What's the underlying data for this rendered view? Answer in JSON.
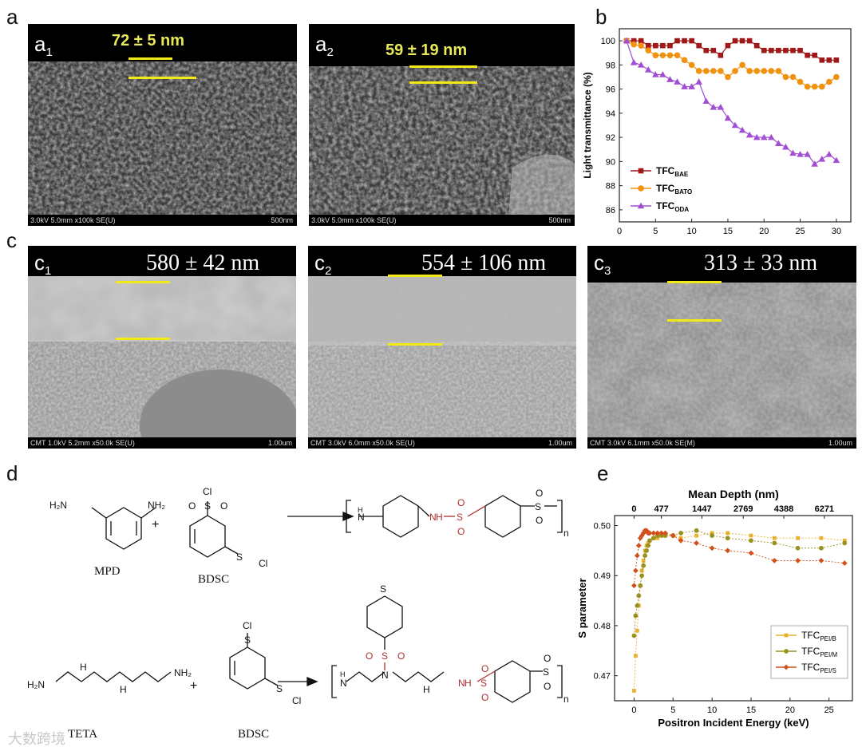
{
  "panels": {
    "a": {
      "label": "a",
      "a1": {
        "sublabel": "a",
        "sub": "1",
        "measure": "72 ± 5 nm",
        "info": "3.0kV 5.0mm x100k SE(U)",
        "scale": "500nm"
      },
      "a2": {
        "sublabel": "a",
        "sub": "2",
        "measure": "59 ± 19 nm",
        "info": "3.0kV 5.0mm x100k SE(U)",
        "scale": "500nm"
      }
    },
    "b": {
      "label": "b"
    },
    "c": {
      "label": "c",
      "c1": {
        "sublabel": "c",
        "sub": "1",
        "measure": "580 ± 42 nm",
        "info": "CMT 1.0kV 5.2mm x50.0k SE(U)",
        "scale": "1.00um"
      },
      "c2": {
        "sublabel": "c",
        "sub": "2",
        "measure": "554 ± 106 nm",
        "info": "CMT 3.0kV 6.0mm x50.0k SE(U)",
        "scale": "1.00um"
      },
      "c3": {
        "sublabel": "c",
        "sub": "3",
        "measure": "313 ± 33 nm",
        "info": "CMT 3.0kV 6.1mm x50.0k SE(M)",
        "scale": "1.00um"
      }
    },
    "d": {
      "label": "d",
      "mpd": "MPD",
      "bdsc1": "BDSC",
      "teta": "TETA",
      "bdsc2": "BDSC",
      "plus": "+",
      "h2n": "H₂N",
      "nh2": "NH₂",
      "cl": "Cl",
      "n": "n",
      "nh": "N",
      "h": "H",
      "o": "O",
      "s": "S"
    },
    "e": {
      "label": "e"
    }
  },
  "watermark": "大数跨境",
  "chart_data": [
    {
      "id": "b",
      "type": "line",
      "title": "",
      "xlabel": "",
      "ylabel": "Light transmittance (%)",
      "xlim": [
        0,
        32
      ],
      "ylim": [
        85,
        101
      ],
      "xticks": [
        0,
        5,
        10,
        15,
        20,
        25,
        30
      ],
      "yticks": [
        86,
        88,
        90,
        92,
        94,
        96,
        98,
        100
      ],
      "legend_position": "bottom-left",
      "series": [
        {
          "name": "TFC",
          "sub": "BAE",
          "color": "#a01818",
          "marker": "square",
          "x": [
            1,
            2,
            3,
            4,
            5,
            6,
            7,
            8,
            9,
            10,
            11,
            12,
            13,
            14,
            15,
            16,
            17,
            18,
            19,
            20,
            21,
            22,
            23,
            24,
            25,
            26,
            27,
            28,
            29,
            30
          ],
          "y": [
            100,
            100,
            100,
            99.6,
            99.6,
            99.6,
            99.6,
            100,
            100,
            100,
            99.6,
            99.2,
            99.2,
            98.8,
            99.6,
            100,
            100,
            100,
            99.6,
            99.2,
            99.2,
            99.2,
            99.2,
            99.2,
            99.2,
            98.8,
            98.8,
            98.4,
            98.4,
            98.4
          ]
        },
        {
          "name": "TFC",
          "sub": "BATO",
          "color": "#f0920e",
          "marker": "circle",
          "x": [
            1,
            2,
            3,
            4,
            5,
            6,
            7,
            8,
            9,
            10,
            11,
            12,
            13,
            14,
            15,
            16,
            17,
            18,
            19,
            20,
            21,
            22,
            23,
            24,
            25,
            26,
            27,
            28,
            29,
            30
          ],
          "y": [
            100,
            99.7,
            99.6,
            99.2,
            98.8,
            98.8,
            98.8,
            98.8,
            98.4,
            98,
            97.5,
            97.5,
            97.5,
            97.5,
            97,
            97.5,
            98,
            97.5,
            97.5,
            97.5,
            97.5,
            97.5,
            97,
            97,
            96.6,
            96.2,
            96.2,
            96.2,
            96.6,
            97
          ]
        },
        {
          "name": "TFC",
          "sub": "ODA",
          "color": "#a24ed4",
          "marker": "triangle",
          "x": [
            1,
            2,
            3,
            4,
            5,
            6,
            7,
            8,
            9,
            10,
            11,
            12,
            13,
            14,
            15,
            16,
            17,
            18,
            19,
            20,
            21,
            22,
            23,
            24,
            25,
            26,
            27,
            28,
            29,
            30
          ],
          "y": [
            100,
            98.2,
            98,
            97.6,
            97.2,
            97.2,
            96.8,
            96.6,
            96.2,
            96.2,
            96.6,
            95,
            94.5,
            94.5,
            93.6,
            93,
            92.6,
            92.2,
            92,
            92,
            92,
            91.5,
            91.2,
            90.7,
            90.6,
            90.6,
            89.8,
            90.2,
            90.6,
            90.1
          ]
        }
      ]
    },
    {
      "id": "e",
      "type": "line",
      "title": "",
      "xlabel": "Positron Incident Energy (keV)",
      "ylabel": "S parameter",
      "x2label": "Mean Depth (nm)",
      "xlim": [
        -2.5,
        28
      ],
      "ylim": [
        0.465,
        0.502
      ],
      "xticks": [
        0,
        5,
        10,
        15,
        20,
        25
      ],
      "yticks": [
        0.47,
        0.48,
        0.49,
        0.5
      ],
      "yticklabels": [
        "0.47",
        "0.48",
        "0.49",
        "0.50"
      ],
      "x2ticks": [
        0,
        3.5,
        8.7,
        14,
        19.2,
        24.4
      ],
      "x2ticklabels": [
        "0",
        "477",
        "1447",
        "2769",
        "4388",
        "6271"
      ],
      "legend_position": "bottom-right",
      "series": [
        {
          "name": "TFC",
          "sub": "PEI/B",
          "color": "#e8b230",
          "marker": "square",
          "x": [
            0,
            0.2,
            0.4,
            0.6,
            0.8,
            1,
            1.2,
            1.4,
            1.6,
            1.8,
            2,
            2.5,
            3,
            3.5,
            4,
            5,
            6,
            8,
            10,
            12,
            15,
            18,
            21,
            24,
            27
          ],
          "y": [
            0.467,
            0.474,
            0.479,
            0.484,
            0.488,
            0.491,
            0.493,
            0.495,
            0.496,
            0.4965,
            0.497,
            0.4975,
            0.4975,
            0.498,
            0.498,
            0.498,
            0.4975,
            0.498,
            0.4985,
            0.4985,
            0.498,
            0.4975,
            0.4975,
            0.4975,
            0.497
          ]
        },
        {
          "name": "TFC",
          "sub": "PEI/M",
          "color": "#9a9220",
          "marker": "circle",
          "x": [
            0,
            0.2,
            0.4,
            0.6,
            0.8,
            1,
            1.2,
            1.4,
            1.6,
            1.8,
            2,
            2.5,
            3,
            3.5,
            4,
            5,
            6,
            8,
            10,
            12,
            15,
            18,
            21,
            24,
            27
          ],
          "y": [
            0.478,
            0.482,
            0.484,
            0.486,
            0.488,
            0.49,
            0.492,
            0.494,
            0.495,
            0.496,
            0.497,
            0.4975,
            0.498,
            0.498,
            0.498,
            0.498,
            0.4985,
            0.499,
            0.498,
            0.4975,
            0.497,
            0.4965,
            0.4955,
            0.4955,
            0.4965
          ]
        },
        {
          "name": "TFC",
          "sub": "PEI/S",
          "color": "#d2501c",
          "marker": "diamond",
          "x": [
            0,
            0.2,
            0.4,
            0.6,
            0.8,
            1,
            1.2,
            1.4,
            1.6,
            1.8,
            2,
            2.5,
            3,
            3.5,
            4,
            5,
            6,
            8,
            10,
            12,
            15,
            18,
            21,
            24,
            27
          ],
          "y": [
            0.488,
            0.491,
            0.494,
            0.496,
            0.4975,
            0.498,
            0.4985,
            0.499,
            0.499,
            0.4985,
            0.4985,
            0.4985,
            0.4985,
            0.4985,
            0.4985,
            0.498,
            0.497,
            0.4965,
            0.4955,
            0.495,
            0.4945,
            0.493,
            0.493,
            0.493,
            0.4925
          ]
        }
      ]
    }
  ]
}
